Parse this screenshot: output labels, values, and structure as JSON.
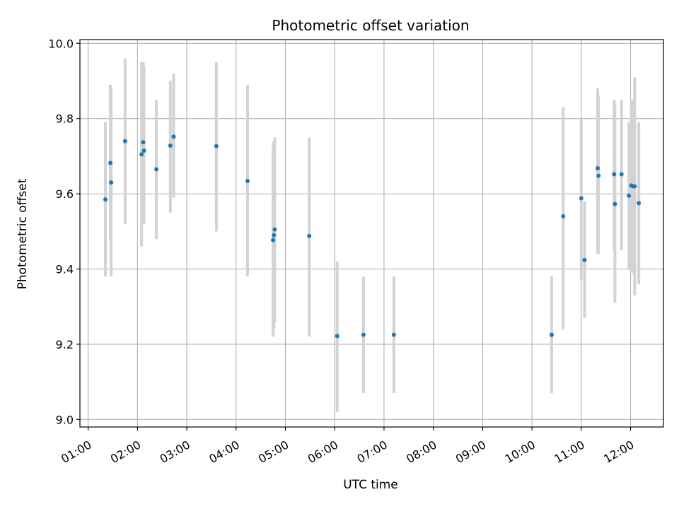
{
  "chart_data": {
    "type": "scatter",
    "title": "Photometric offset variation",
    "xlabel": "UTC time",
    "ylabel": "Photometric offset",
    "grid": true,
    "xlim": [
      "00:50",
      "12:40"
    ],
    "ylim": [
      8.98,
      10.01
    ],
    "x_ticks": [
      "01:00",
      "02:00",
      "03:00",
      "04:00",
      "05:00",
      "06:00",
      "07:00",
      "08:00",
      "09:00",
      "10:00",
      "11:00",
      "12:00"
    ],
    "y_ticks": [
      "9.0",
      "9.2",
      "9.4",
      "9.6",
      "9.8",
      "10.0"
    ],
    "point_color": "#1f77b4",
    "errorbar_color": "#d3d3d3",
    "points": [
      {
        "time": "01:21",
        "value": 9.585,
        "low": 9.38,
        "high": 9.79
      },
      {
        "time": "01:27",
        "value": 9.682,
        "low": 9.48,
        "high": 9.89
      },
      {
        "time": "01:28",
        "value": 9.63,
        "low": 9.38,
        "high": 9.88
      },
      {
        "time": "01:45",
        "value": 9.74,
        "low": 9.52,
        "high": 9.96
      },
      {
        "time": "02:05",
        "value": 9.705,
        "low": 9.46,
        "high": 9.95
      },
      {
        "time": "02:07",
        "value": 9.737,
        "low": 9.52,
        "high": 9.95
      },
      {
        "time": "02:08",
        "value": 9.715,
        "low": 9.52,
        "high": 9.94
      },
      {
        "time": "02:23",
        "value": 9.665,
        "low": 9.48,
        "high": 9.85
      },
      {
        "time": "02:40",
        "value": 9.728,
        "low": 9.55,
        "high": 9.9
      },
      {
        "time": "02:44",
        "value": 9.752,
        "low": 9.59,
        "high": 9.92
      },
      {
        "time": "03:36",
        "value": 9.727,
        "low": 9.5,
        "high": 9.95
      },
      {
        "time": "04:14",
        "value": 9.634,
        "low": 9.38,
        "high": 9.89
      },
      {
        "time": "04:45",
        "value": 9.477,
        "low": 9.22,
        "high": 9.73
      },
      {
        "time": "04:46",
        "value": 9.49,
        "low": 9.24,
        "high": 9.74
      },
      {
        "time": "04:47",
        "value": 9.505,
        "low": 9.26,
        "high": 9.75
      },
      {
        "time": "05:29",
        "value": 9.488,
        "low": 9.22,
        "high": 9.75
      },
      {
        "time": "06:03",
        "value": 9.222,
        "low": 9.02,
        "high": 9.42
      },
      {
        "time": "06:35",
        "value": 9.225,
        "low": 9.07,
        "high": 9.38
      },
      {
        "time": "07:12",
        "value": 9.225,
        "low": 9.07,
        "high": 9.38
      },
      {
        "time": "10:24",
        "value": 9.225,
        "low": 9.07,
        "high": 9.38
      },
      {
        "time": "10:38",
        "value": 9.54,
        "low": 9.24,
        "high": 9.83
      },
      {
        "time": "11:00",
        "value": 9.588,
        "low": 9.37,
        "high": 9.8
      },
      {
        "time": "11:04",
        "value": 9.424,
        "low": 9.27,
        "high": 9.58
      },
      {
        "time": "11:20",
        "value": 9.668,
        "low": 9.44,
        "high": 9.88
      },
      {
        "time": "11:21",
        "value": 9.648,
        "low": 9.44,
        "high": 9.86
      },
      {
        "time": "11:40",
        "value": 9.652,
        "low": 9.45,
        "high": 9.85
      },
      {
        "time": "11:41",
        "value": 9.573,
        "low": 9.31,
        "high": 9.84
      },
      {
        "time": "11:49",
        "value": 9.652,
        "low": 9.45,
        "high": 9.85
      },
      {
        "time": "11:58",
        "value": 9.595,
        "low": 9.4,
        "high": 9.79
      },
      {
        "time": "12:01",
        "value": 9.622,
        "low": 9.39,
        "high": 9.85
      },
      {
        "time": "12:03",
        "value": 9.62,
        "low": 9.39,
        "high": 9.85
      },
      {
        "time": "12:05",
        "value": 9.62,
        "low": 9.33,
        "high": 9.91
      },
      {
        "time": "12:10",
        "value": 9.575,
        "low": 9.36,
        "high": 9.79
      }
    ]
  }
}
